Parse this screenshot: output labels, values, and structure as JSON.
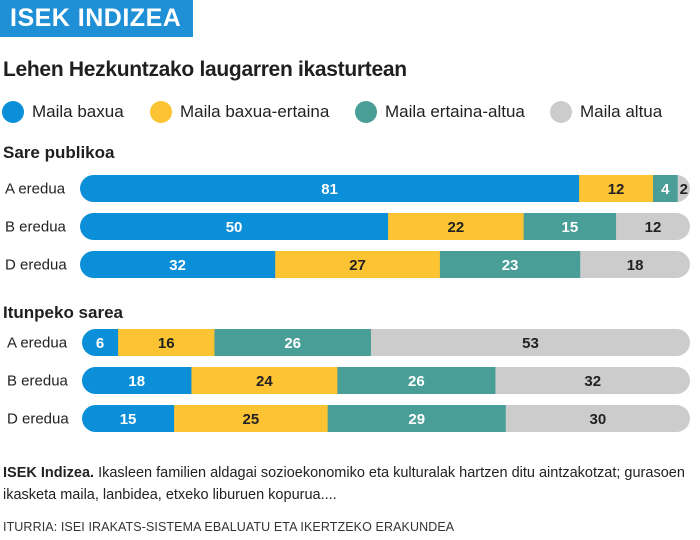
{
  "header": {
    "tag": "ISEK INDIZEA"
  },
  "title": "Lehen Hezkuntzako laugarren ikasturtean",
  "legend": [
    {
      "label": "Maila baxua",
      "color": "#0b8fd8",
      "icon": "circle-icon"
    },
    {
      "label": "Maila baxua-ertaina",
      "color": "#fcc433",
      "icon": "circle-icon"
    },
    {
      "label": "Maila ertaina-altua",
      "color": "#4a9e98",
      "icon": "circle-icon"
    },
    {
      "label": "Maila altua",
      "color": "#cccccc",
      "icon": "circle-icon"
    }
  ],
  "value_text_colors": [
    "#ffffff",
    "#222222",
    "#ffffff",
    "#222222"
  ],
  "chart_data": {
    "type": "bar",
    "stacked": true,
    "orientation": "horizontal",
    "series_names": [
      "Maila baxua",
      "Maila baxua-ertaina",
      "Maila ertaina-altua",
      "Maila altua"
    ],
    "groups": [
      {
        "name": "Sare publikoa",
        "rows": [
          {
            "label": "A eredua",
            "values": [
              81,
              12,
              4,
              2
            ]
          },
          {
            "label": "B eredua",
            "values": [
              50,
              22,
              15,
              12
            ]
          },
          {
            "label": "D eredua",
            "values": [
              32,
              27,
              23,
              18
            ]
          }
        ]
      },
      {
        "name": "Itunpeko sarea",
        "rows": [
          {
            "label": "A eredua",
            "values": [
              6,
              16,
              26,
              53
            ]
          },
          {
            "label": "B eredua",
            "values": [
              18,
              24,
              26,
              32
            ]
          },
          {
            "label": "D eredua",
            "values": [
              15,
              25,
              29,
              30
            ]
          }
        ]
      }
    ]
  },
  "note": {
    "bold": "ISEK Indizea.",
    "text": " Ikasleen familien aldagai sozioekonomiko eta kulturalak hartzen ditu aintzakotzat; gurasoen ikasketa maila, lanbidea, etxeko liburuen kopurua...."
  },
  "source": "ITURRIA: ISEI IRAKATS-SISTEMA EBALUATU ETA IKERTZEKO ERAKUNDEA"
}
